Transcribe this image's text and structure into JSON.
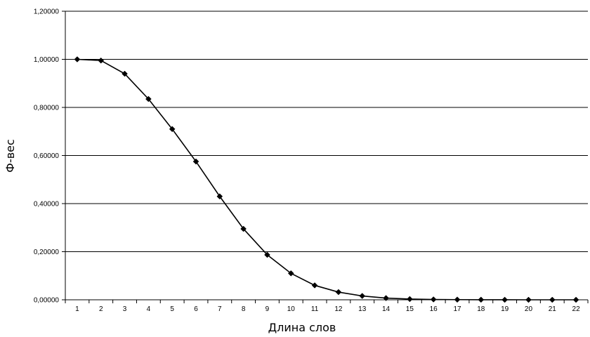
{
  "chart_data": {
    "type": "line",
    "xlabel": "Длина слов",
    "ylabel": "Ф-вес",
    "ylim": [
      0,
      1.2
    ],
    "yticks": [
      "0,00000",
      "0,20000",
      "0,40000",
      "0,60000",
      "0,80000",
      "1,00000",
      "1,20000"
    ],
    "grid": "horizontal",
    "x": [
      "1",
      "2",
      "3",
      "4",
      "5",
      "6",
      "7",
      "8",
      "9",
      "10",
      "11",
      "12",
      "13",
      "14",
      "15",
      "16",
      "17",
      "18",
      "19",
      "20",
      "21",
      "22"
    ],
    "series": [
      {
        "values": [
          1.0,
          0.995,
          0.94,
          0.835,
          0.71,
          0.575,
          0.43,
          0.295,
          0.187,
          0.11,
          0.06,
          0.032,
          0.016,
          0.007,
          0.003,
          0.0015,
          0.0007,
          0.0003,
          0.0001,
          0.0,
          0.0,
          0.0
        ],
        "marker": "diamond",
        "color": "#000000"
      }
    ]
  }
}
